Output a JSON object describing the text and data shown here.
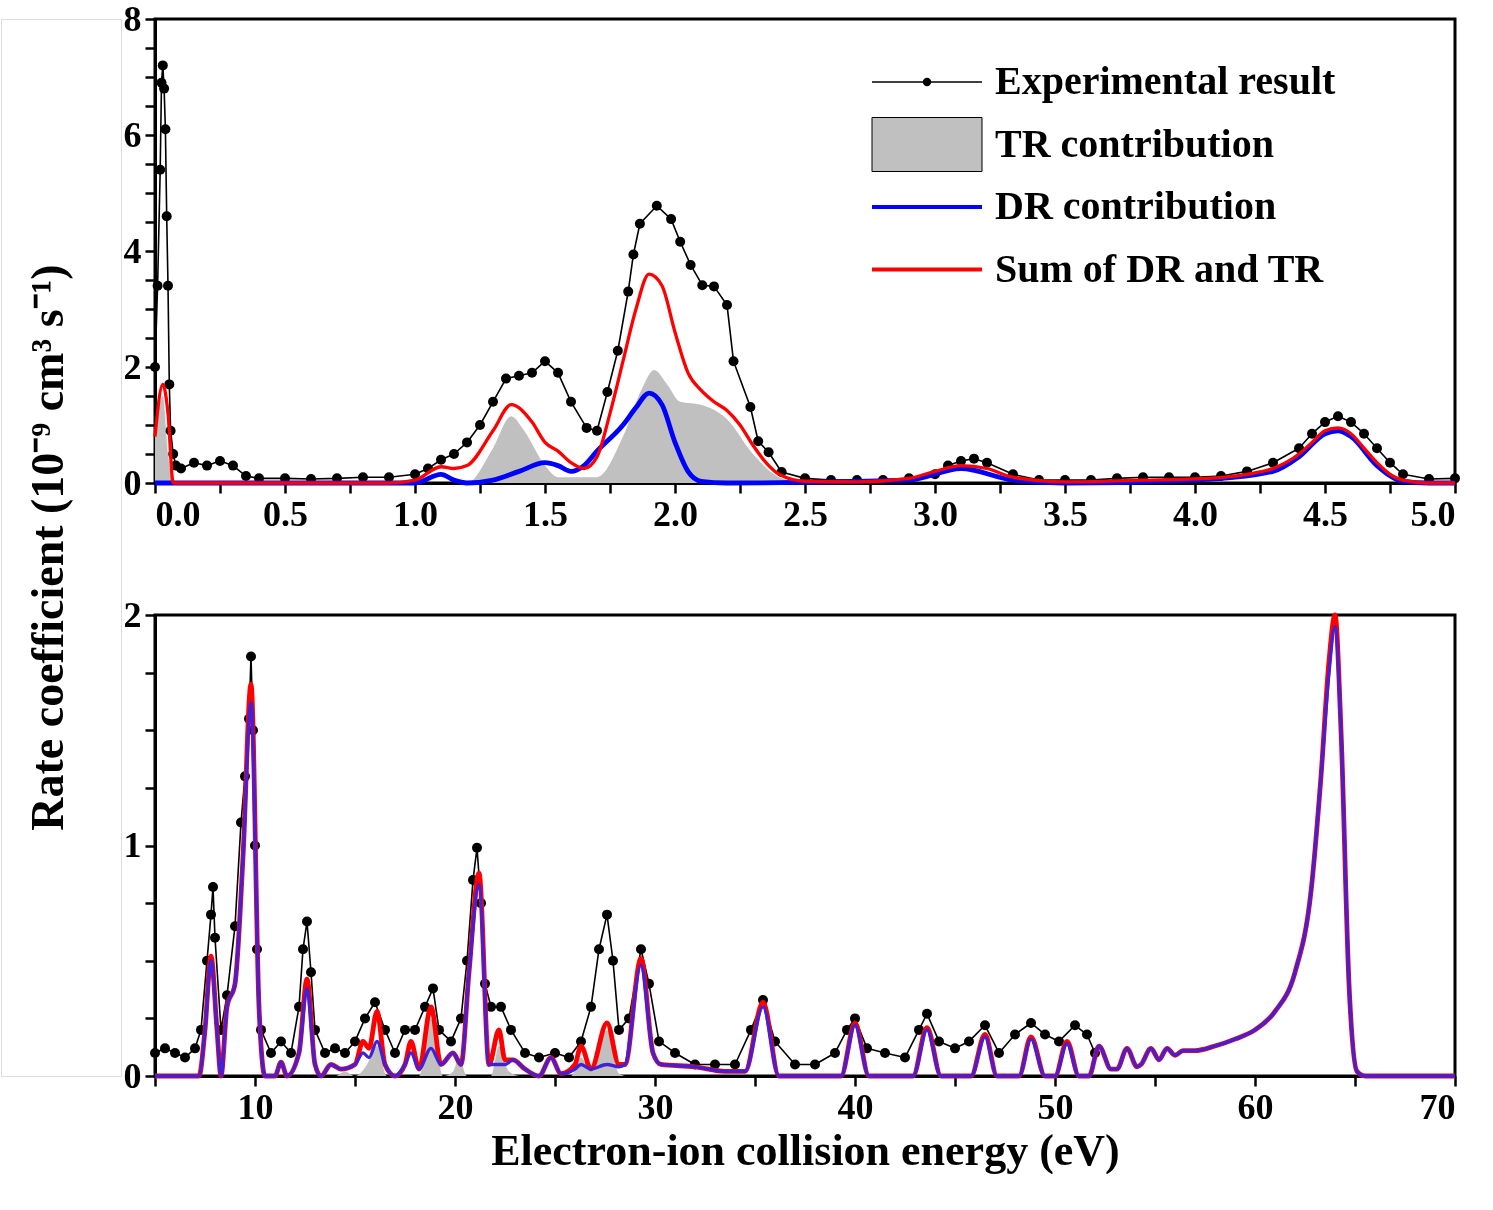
{
  "chart_data": [
    {
      "type": "line",
      "ylabel": "Rate coefficient (10⁻⁹ cm³ s⁻¹)",
      "xlim": [
        0,
        5
      ],
      "ylim": [
        0,
        8
      ],
      "xticks": [
        {
          "value": 0,
          "label": "0.0"
        },
        {
          "value": 0.25,
          "label": null
        },
        {
          "value": 0.5,
          "label": "0.5"
        },
        {
          "value": 0.75,
          "label": null
        },
        {
          "value": 1,
          "label": "1.0"
        },
        {
          "value": 1.25,
          "label": null
        },
        {
          "value": 1.5,
          "label": "1.5"
        },
        {
          "value": 1.75,
          "label": null
        },
        {
          "value": 2,
          "label": "2.0"
        },
        {
          "value": 2.25,
          "label": null
        },
        {
          "value": 2.5,
          "label": "2.5"
        },
        {
          "value": 2.75,
          "label": null
        },
        {
          "value": 3,
          "label": "3.0"
        },
        {
          "value": 3.25,
          "label": null
        },
        {
          "value": 3.5,
          "label": "3.5"
        },
        {
          "value": 3.75,
          "label": null
        },
        {
          "value": 4,
          "label": "4.0"
        },
        {
          "value": 4.25,
          "label": null
        },
        {
          "value": 4.5,
          "label": "4.5"
        },
        {
          "value": 4.75,
          "label": null
        },
        {
          "value": 5,
          "label": "5.0"
        }
      ],
      "yticks": [
        0,
        {
          "value": 0.5,
          "label": null
        },
        {
          "value": 1,
          "label": null
        },
        {
          "value": 1.5,
          "label": null
        },
        2,
        {
          "value": 2.5,
          "label": null
        },
        {
          "value": 3,
          "label": null
        },
        {
          "value": 3.5,
          "label": null
        },
        4,
        {
          "value": 4.5,
          "label": null
        },
        {
          "value": 5,
          "label": null
        },
        {
          "value": 5.5,
          "label": null
        },
        6,
        {
          "value": 6.5,
          "label": null
        },
        {
          "value": 7,
          "label": null
        },
        {
          "value": 7.5,
          "label": null
        },
        8
      ],
      "legend": "top right",
      "series": [
        {
          "name": "Experimental result",
          "marker": "circle",
          "color": "#000000",
          "x": [
            0,
            0.01,
            0.02,
            0.025,
            0.03,
            0.035,
            0.04,
            0.045,
            0.05,
            0.055,
            0.06,
            0.07,
            0.08,
            0.1,
            0.15,
            0.2,
            0.25,
            0.3,
            0.35,
            0.4,
            0.5,
            0.6,
            0.7,
            0.8,
            0.9,
            1.0,
            1.05,
            1.1,
            1.15,
            1.2,
            1.25,
            1.3,
            1.35,
            1.4,
            1.45,
            1.5,
            1.55,
            1.6,
            1.66,
            1.7,
            1.74,
            1.78,
            1.82,
            1.84,
            1.865,
            1.93,
            1.985,
            2.02,
            2.06,
            2.105,
            2.15,
            2.2,
            2.225,
            2.29,
            2.32,
            2.36,
            2.41,
            2.5,
            2.6,
            2.7,
            2.8,
            2.9,
            3.0,
            3.05,
            3.1,
            3.15,
            3.2,
            3.3,
            3.4,
            3.5,
            3.6,
            3.7,
            3.8,
            3.9,
            4.0,
            4.1,
            4.2,
            4.3,
            4.4,
            4.45,
            4.5,
            4.55,
            4.6,
            4.65,
            4.7,
            4.75,
            4.8,
            4.9,
            5.0
          ],
          "values": [
            2.0,
            3.4,
            5.4,
            6.9,
            7.2,
            6.8,
            6.1,
            4.6,
            3.4,
            1.7,
            0.9,
            0.5,
            0.3,
            0.25,
            0.35,
            0.3,
            0.38,
            0.3,
            0.12,
            0.08,
            0.08,
            0.07,
            0.08,
            0.1,
            0.1,
            0.15,
            0.25,
            0.4,
            0.5,
            0.7,
            1.0,
            1.4,
            1.8,
            1.85,
            1.9,
            2.1,
            1.9,
            1.4,
            0.95,
            0.9,
            1.57,
            2.28,
            3.3,
            3.94,
            4.47,
            4.78,
            4.55,
            4.16,
            3.76,
            3.41,
            3.39,
            3.07,
            2.1,
            1.31,
            0.72,
            0.53,
            0.19,
            0.08,
            0.05,
            0.05,
            0.05,
            0.08,
            0.15,
            0.3,
            0.38,
            0.42,
            0.35,
            0.15,
            0.05,
            0.05,
            0.05,
            0.08,
            0.1,
            0.1,
            0.1,
            0.12,
            0.2,
            0.35,
            0.6,
            0.85,
            1.05,
            1.15,
            1.05,
            0.85,
            0.6,
            0.35,
            0.15,
            0.07,
            0.08
          ]
        },
        {
          "name": "TR contribution",
          "type": "area",
          "color": "#c0c0c0",
          "x": [
            0,
            0.03,
            0.05,
            0.07,
            1.2,
            1.3,
            1.37,
            1.42,
            1.5,
            1.55,
            1.7,
            1.8,
            1.87,
            1.92,
            1.97,
            2.02,
            2.1,
            2.2,
            2.3,
            2.4,
            2.5,
            5.0
          ],
          "values": [
            0.8,
            1.5,
            0.5,
            0,
            0,
            0.6,
            1.15,
            0.9,
            0.3,
            0.1,
            0.1,
            0.8,
            1.6,
            1.95,
            1.7,
            1.4,
            1.35,
            1.1,
            0.5,
            0.1,
            0,
            0
          ]
        },
        {
          "name": "DR contribution",
          "color": "#0000ff",
          "x": [
            0,
            1.0,
            1.1,
            1.15,
            1.2,
            1.3,
            1.4,
            1.5,
            1.55,
            1.6,
            1.65,
            1.7,
            1.8,
            1.85,
            1.9,
            1.95,
            2.0,
            2.05,
            2.1,
            2.2,
            2.9,
            3.1,
            3.3,
            3.5,
            4.0,
            4.3,
            4.4,
            4.5,
            4.55,
            4.6,
            4.7,
            4.8,
            4.9,
            5.0
          ],
          "values": [
            0,
            0,
            0.15,
            0.05,
            0,
            0.05,
            0.2,
            0.35,
            0.3,
            0.2,
            0.3,
            0.55,
            1.0,
            1.3,
            1.55,
            1.35,
            0.7,
            0.2,
            0.03,
            0,
            0.05,
            0.25,
            0.05,
            0,
            0.05,
            0.2,
            0.45,
            0.85,
            0.9,
            0.8,
            0.3,
            0.03,
            0,
            0
          ]
        },
        {
          "name": "Sum of DR and TR",
          "color": "#ff0000",
          "x": [
            0,
            0.03,
            0.05,
            0.07,
            0.9,
            1.0,
            1.1,
            1.15,
            1.2,
            1.3,
            1.37,
            1.45,
            1.5,
            1.55,
            1.6,
            1.65,
            1.7,
            1.75,
            1.8,
            1.85,
            1.9,
            1.95,
            2.0,
            2.05,
            2.1,
            2.15,
            2.2,
            2.25,
            2.3,
            2.35,
            2.4,
            2.5,
            2.7,
            2.9,
            3.0,
            3.1,
            3.2,
            3.3,
            3.5,
            3.8,
            4.0,
            4.2,
            4.3,
            4.4,
            4.45,
            4.5,
            4.55,
            4.6,
            4.65,
            4.7,
            4.75,
            4.8,
            4.9,
            5.0
          ],
          "values": [
            0.8,
            1.7,
            1.2,
            0,
            0,
            0.05,
            0.28,
            0.25,
            0.3,
            0.9,
            1.35,
            1.05,
            0.7,
            0.55,
            0.35,
            0.25,
            0.45,
            1.2,
            2.1,
            3.0,
            3.6,
            3.4,
            2.6,
            1.9,
            1.6,
            1.4,
            1.25,
            1.0,
            0.65,
            0.35,
            0.15,
            0.03,
            0.02,
            0.08,
            0.2,
            0.3,
            0.25,
            0.1,
            0.02,
            0.05,
            0.07,
            0.15,
            0.25,
            0.5,
            0.7,
            0.9,
            0.95,
            0.85,
            0.6,
            0.35,
            0.15,
            0.05,
            0,
            0
          ]
        }
      ]
    },
    {
      "type": "line",
      "xlabel": "Electron-ion collision energy (eV)",
      "xlim": [
        5,
        70
      ],
      "ylim": [
        0,
        2
      ],
      "xticks": [
        {
          "value": 5,
          "label": null
        },
        10,
        {
          "value": 15,
          "label": null
        },
        20,
        {
          "value": 25,
          "label": null
        },
        30,
        {
          "value": 35,
          "label": null
        },
        40,
        {
          "value": 45,
          "label": null
        },
        50,
        {
          "value": 55,
          "label": null
        },
        60,
        {
          "value": 65,
          "label": null
        },
        70
      ],
      "yticks": [
        0,
        {
          "value": 0.25,
          "label": null
        },
        {
          "value": 0.5,
          "label": null
        },
        {
          "value": 0.75,
          "label": null
        },
        1,
        {
          "value": 1.25,
          "label": null
        },
        {
          "value": 1.5,
          "label": null
        },
        {
          "value": 1.75,
          "label": null
        },
        2
      ],
      "series": [
        {
          "marker": "circle",
          "color": "#000000",
          "x": [
            5.0,
            5.5,
            6.0,
            6.5,
            7.0,
            7.3,
            7.6,
            7.8,
            7.9,
            8.0,
            8.3,
            8.6,
            9.0,
            9.3,
            9.5,
            9.7,
            9.8,
            9.9,
            10.0,
            10.1,
            10.3,
            10.8,
            11.3,
            11.8,
            12.2,
            12.4,
            12.6,
            12.8,
            13.0,
            13.5,
            14,
            14.5,
            15.0,
            15.5,
            16.0,
            16.5,
            17.0,
            17.5,
            18.0,
            18.5,
            18.9,
            19.2,
            19.8,
            20.3,
            20.6,
            20.9,
            21.1,
            21.3,
            21.5,
            21.8,
            22.3,
            22.8,
            23.5,
            24.2,
            25,
            25.7,
            26.3,
            26.8,
            27.2,
            27.6,
            27.9,
            28.2,
            28.7,
            29.3,
            29.7,
            30.2,
            31,
            32,
            33,
            34,
            34.8,
            35.4,
            36,
            37,
            38,
            39,
            39.6,
            40,
            40.6,
            41.5,
            42.5,
            43.2,
            43.6,
            44.2,
            45,
            45.7,
            46.5,
            47.2,
            48,
            48.8,
            49.5,
            50.2,
            51,
            51.6,
            52
          ],
          "values": [
            0.1,
            0.12,
            0.1,
            0.08,
            0.12,
            0.2,
            0.5,
            0.7,
            0.82,
            0.6,
            0.2,
            0.35,
            0.65,
            1.1,
            1.3,
            1.55,
            1.82,
            1.5,
            1.0,
            0.55,
            0.2,
            0.1,
            0.15,
            0.1,
            0.3,
            0.55,
            0.67,
            0.45,
            0.2,
            0.1,
            0.12,
            0.1,
            0.15,
            0.25,
            0.32,
            0.2,
            0.1,
            0.2,
            0.2,
            0.3,
            0.38,
            0.2,
            0.15,
            0.25,
            0.5,
            0.85,
            0.99,
            0.75,
            0.4,
            0.3,
            0.3,
            0.2,
            0.1,
            0.08,
            0.1,
            0.08,
            0.15,
            0.3,
            0.55,
            0.7,
            0.5,
            0.2,
            0.25,
            0.55,
            0.4,
            0.15,
            0.1,
            0.05,
            0.05,
            0.05,
            0.2,
            0.33,
            0.15,
            0.05,
            0.05,
            0.1,
            0.2,
            0.25,
            0.12,
            0.1,
            0.08,
            0.2,
            0.27,
            0.15,
            0.12,
            0.15,
            0.22,
            0.1,
            0.18,
            0.23,
            0.18,
            0.15,
            0.22,
            0.18,
            0.1
          ]
        },
        {
          "type": "area",
          "color": "#c0c0c0",
          "x": [
            5,
            14,
            14.5,
            15.0,
            15.6,
            16.1,
            16.6,
            18.2,
            18.8,
            19.4,
            19.9,
            20.2,
            20.6,
            21.8,
            22.2,
            22.7,
            23.3,
            25.8,
            26.3,
            26.8,
            27.6,
            28.2,
            28.6,
            70
          ],
          "values": [
            0,
            0,
            0.02,
            0,
            0.05,
            0.13,
            0,
            0,
            0.25,
            0,
            0.02,
            0.08,
            0,
            0,
            0.13,
            0.02,
            0,
            0,
            0.08,
            0.02,
            0.2,
            0.01,
            0,
            0
          ]
        },
        {
          "color": "#ff0000",
          "x": [
            5,
            7.2,
            7.5,
            7.8,
            8.1,
            8.3,
            8.6,
            9.0,
            9.4,
            9.8,
            10.2,
            10.5,
            11.0,
            11.3,
            11.6,
            12.2,
            12.6,
            13.0,
            13.3,
            13.8,
            14.3,
            15.0,
            15.4,
            15.7,
            16.1,
            16.5,
            17.0,
            17.5,
            17.8,
            18.2,
            18.8,
            19.3,
            19.9,
            20.3,
            20.7,
            21.2,
            21.7,
            22.2,
            22.5,
            22.9,
            23.5,
            24.2,
            24.8,
            25.3,
            26.0,
            26.3,
            26.8,
            27.6,
            28.2,
            28.5,
            29.3,
            29.9,
            30.3,
            32,
            33.5,
            34.5,
            35.4,
            36.2,
            39.3,
            40.0,
            40.7,
            42.9,
            43.6,
            44.3,
            45.8,
            46.5,
            47.1,
            48.2,
            48.8,
            49.5,
            50.0,
            50.6,
            51.2,
            51.7,
            52.2,
            52.8,
            53.1,
            53.6,
            54.1,
            54.3,
            54.8,
            55.2,
            55.6,
            56.0,
            56.4,
            57,
            58,
            59,
            60,
            61,
            62,
            62.8,
            63.3,
            63.7,
            64.0,
            64.3,
            64.7,
            65.1,
            65.5,
            70
          ],
          "values": [
            0,
            0,
            0.2,
            0.52,
            0.2,
            0,
            0.3,
            0.4,
            0.95,
            1.7,
            0.3,
            0,
            0,
            0.06,
            0,
            0.1,
            0.42,
            0.05,
            0,
            0.05,
            0.03,
            0.05,
            0.15,
            0.12,
            0.28,
            0.05,
            0,
            0.05,
            0.15,
            0.03,
            0.3,
            0.05,
            0.1,
            0.05,
            0.45,
            0.88,
            0.05,
            0.2,
            0.07,
            0.07,
            0.03,
            0,
            0.08,
            0.01,
            0.05,
            0.13,
            0.03,
            0.23,
            0.05,
            0.05,
            0.51,
            0.1,
            0.05,
            0.04,
            0.02,
            0.02,
            0.32,
            0,
            0,
            0.23,
            0,
            0,
            0.21,
            0,
            0,
            0.18,
            0,
            0,
            0.17,
            0,
            0,
            0.15,
            0,
            0,
            0.13,
            0.03,
            0.03,
            0.12,
            0.04,
            0.05,
            0.12,
            0.07,
            0.12,
            0.09,
            0.11,
            0.11,
            0.13,
            0.16,
            0.2,
            0.28,
            0.45,
            0.8,
            1.3,
            1.8,
            2.0,
            1.5,
            0.4,
            0.02,
            0,
            0
          ]
        },
        {
          "color": "#4020d8",
          "x": [
            5,
            7.2,
            7.5,
            7.8,
            8.1,
            8.3,
            8.6,
            9.0,
            9.4,
            9.8,
            10.2,
            10.5,
            11.0,
            11.3,
            11.6,
            12.2,
            12.6,
            13.0,
            13.3,
            13.8,
            14.3,
            15.0,
            15.4,
            15.7,
            16.1,
            16.5,
            17.0,
            17.5,
            17.8,
            18.2,
            18.8,
            19.3,
            19.9,
            20.3,
            20.7,
            21.2,
            21.7,
            22.2,
            22.5,
            22.9,
            23.5,
            24.2,
            24.8,
            25.3,
            26.0,
            26.3,
            26.8,
            27.6,
            28.2,
            28.5,
            29.3,
            29.9,
            30.3,
            32,
            33.5,
            34.5,
            35.4,
            36.2,
            39.3,
            40.0,
            40.7,
            42.9,
            43.6,
            44.3,
            45.8,
            46.5,
            47.1,
            48.2,
            48.8,
            49.5,
            50.0,
            50.6,
            51.2,
            51.7,
            52.2,
            52.8,
            53.1,
            53.6,
            54.1,
            54.3,
            54.8,
            55.2,
            55.6,
            56.0,
            56.4,
            57,
            58,
            59,
            60,
            61,
            62,
            62.8,
            63.3,
            63.7,
            64.0,
            64.3,
            64.7,
            65.1,
            65.5,
            70
          ],
          "values": [
            0,
            0,
            0.2,
            0.5,
            0.2,
            0,
            0.3,
            0.4,
            0.95,
            1.62,
            0.3,
            0,
            0,
            0.06,
            0,
            0.1,
            0.38,
            0.05,
            0,
            0.05,
            0.03,
            0.05,
            0.1,
            0.08,
            0.15,
            0.05,
            0,
            0.05,
            0.1,
            0.03,
            0.12,
            0.05,
            0.1,
            0.05,
            0.45,
            0.83,
            0.05,
            0.05,
            0.05,
            0.07,
            0.03,
            0,
            0.08,
            0.01,
            0.03,
            0.05,
            0.03,
            0.05,
            0.04,
            0.05,
            0.48,
            0.1,
            0.05,
            0.04,
            0.02,
            0.02,
            0.3,
            0,
            0,
            0.22,
            0,
            0,
            0.2,
            0,
            0,
            0.17,
            0,
            0,
            0.16,
            0,
            0,
            0.14,
            0,
            0,
            0.13,
            0.03,
            0.03,
            0.12,
            0.04,
            0.05,
            0.12,
            0.07,
            0.12,
            0.09,
            0.11,
            0.11,
            0.13,
            0.16,
            0.2,
            0.28,
            0.45,
            0.8,
            1.3,
            1.75,
            1.95,
            1.5,
            0.4,
            0.02,
            0,
            0
          ]
        }
      ]
    }
  ]
}
